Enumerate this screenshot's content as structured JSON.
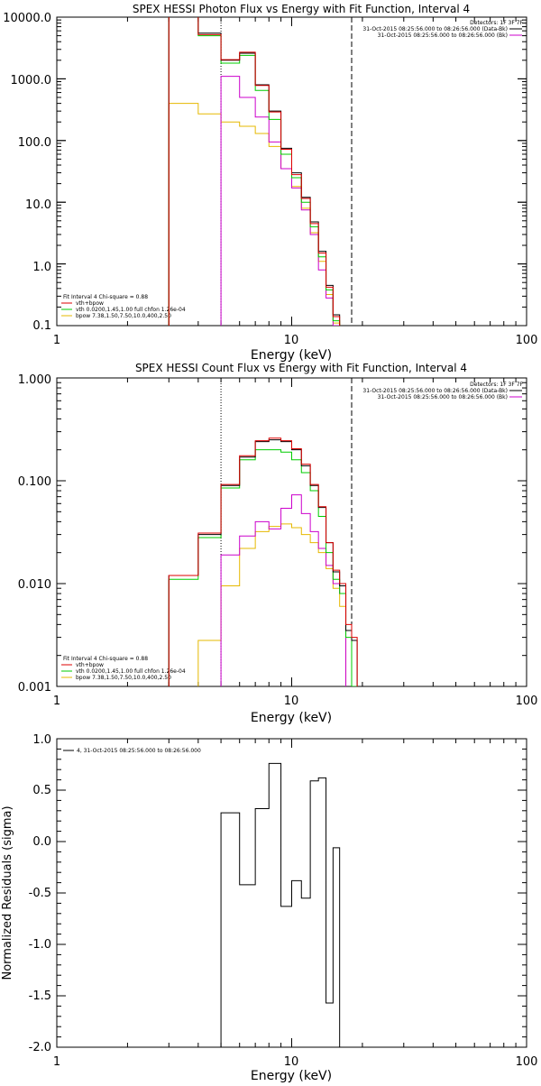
{
  "colors": {
    "data": "#000000",
    "total": "#dd0000",
    "vth": "#00cc00",
    "bpow": "#e6b800",
    "bk": "#cc00cc"
  },
  "chart_data": [
    {
      "type": "line",
      "title": "SPEX HESSI Photon Flux vs Energy with Fit Function, Interval 4",
      "xlabel": "Energy (keV)",
      "ylabel": "",
      "xscale": "log",
      "yscale": "log",
      "xlim": [
        1,
        100
      ],
      "ylim": [
        0.1,
        10000
      ],
      "xtick_labels": [
        "1",
        "10",
        "100"
      ],
      "ytick_labels": [
        "0.1",
        "1.0",
        "10.0",
        "100.0",
        "1000.0",
        "10000.0"
      ],
      "detectors_label": "Detectors: 1F 3F 7F",
      "legend_right": [
        "31-Oct-2015 08:25:56.000 to 08:26:56.000 (Data-Bk)",
        "31-Oct-2015 08:25:56.000 to 08:26:56.000 (Bk)"
      ],
      "legend_left": [
        "Fit Interval 4   Chi-square = 0.88",
        "vth+bpow",
        "vth 0.0200,1.45,1.00  full chfon 1.26e-04",
        "bpow 7.38,1.50,7.50,10.0,400,2.50"
      ],
      "vlines": [
        5,
        18
      ],
      "bin_edges": [
        3,
        4,
        5,
        6,
        7,
        8,
        9,
        10,
        11,
        12,
        13,
        14,
        15,
        16,
        17,
        18
      ],
      "series": [
        {
          "key": "data",
          "values": [
            20000,
            5500,
            2000,
            2600,
            800,
            300,
            75,
            30,
            12,
            4.8,
            1.6,
            0.45,
            0.15,
            null,
            null
          ]
        },
        {
          "key": "total",
          "values": [
            20000,
            5200,
            2050,
            2700,
            780,
            290,
            72,
            28,
            11.5,
            4.5,
            1.5,
            0.42,
            0.14,
            null,
            null
          ]
        },
        {
          "key": "vth",
          "values": [
            20000,
            5000,
            1800,
            2400,
            650,
            220,
            60,
            25,
            10,
            4.0,
            1.3,
            0.38,
            0.12,
            null,
            null
          ]
        },
        {
          "key": "bpow",
          "values": [
            400,
            270,
            200,
            170,
            130,
            80,
            35,
            18,
            8,
            3.2,
            1.1,
            0.32,
            0.11,
            null,
            null
          ]
        },
        {
          "key": "bk",
          "values": [
            null,
            null,
            1100,
            500,
            240,
            95,
            35,
            17,
            7.5,
            3.0,
            0.8,
            0.28,
            0.1,
            null,
            null
          ]
        }
      ]
    },
    {
      "type": "line",
      "title": "SPEX HESSI Count Flux vs Energy with Fit Function, Interval 4",
      "xlabel": "Energy (keV)",
      "ylabel": "",
      "xscale": "log",
      "yscale": "log",
      "xlim": [
        1,
        100
      ],
      "ylim": [
        0.001,
        1.0
      ],
      "xtick_labels": [
        "1",
        "10",
        "100"
      ],
      "ytick_labels": [
        "0.001",
        "0.010",
        "0.100",
        "1.000"
      ],
      "detectors_label": "Detectors: 1F 3F 7F",
      "legend_right": [
        "31-Oct-2015 08:25:56.000 to 08:26:56.000 (Data-Bk)",
        "31-Oct-2015 08:25:56.000 to 08:26:56.000 (Bk)"
      ],
      "legend_left": [
        "Fit Interval 4   Chi-square = 0.88",
        "vth+bpow",
        "vth 0.0200,1.45,1.00  full chfon 1.26e-04",
        "bpow 7.38,1.50,7.50,10.0,400,2.50"
      ],
      "vlines": [
        5,
        18
      ],
      "bin_edges": [
        3,
        4,
        5,
        6,
        7,
        8,
        9,
        10,
        11,
        12,
        13,
        14,
        15,
        16,
        17,
        18,
        19,
        20
      ],
      "series": [
        {
          "key": "data",
          "values": [
            0.012,
            0.03,
            0.09,
            0.17,
            0.24,
            0.25,
            0.24,
            0.2,
            0.14,
            0.09,
            0.055,
            0.025,
            0.013,
            0.0095,
            0.0035,
            0.0028,
            null
          ]
        },
        {
          "key": "total",
          "values": [
            0.012,
            0.031,
            0.092,
            0.175,
            0.245,
            0.26,
            0.245,
            0.205,
            0.145,
            0.092,
            0.056,
            0.025,
            0.0135,
            0.01,
            0.004,
            0.003,
            null
          ]
        },
        {
          "key": "vth",
          "values": [
            0.011,
            0.028,
            0.085,
            0.16,
            0.2,
            0.2,
            0.19,
            0.16,
            0.12,
            0.08,
            0.045,
            0.02,
            0.011,
            0.008,
            0.003,
            0.001,
            null
          ]
        },
        {
          "key": "bpow",
          "values": [
            null,
            0.0028,
            0.0095,
            0.022,
            0.032,
            0.036,
            0.038,
            0.035,
            0.03,
            0.025,
            0.02,
            0.014,
            0.009,
            0.006,
            null,
            null,
            null
          ]
        },
        {
          "key": "bk",
          "values": [
            null,
            null,
            0.019,
            0.029,
            0.04,
            0.034,
            0.054,
            0.073,
            0.048,
            0.032,
            0.022,
            0.015,
            0.01,
            0.008,
            null,
            null,
            null
          ]
        }
      ]
    },
    {
      "type": "line",
      "title": "",
      "xlabel": "Energy (keV)",
      "ylabel": "Normalized Residuals (sigma)",
      "xscale": "log",
      "yscale": "linear",
      "xlim": [
        1,
        100
      ],
      "ylim": [
        -2.0,
        1.0
      ],
      "xtick_labels": [
        "1",
        "10",
        "100"
      ],
      "ytick_labels": [
        "-2.0",
        "-1.5",
        "-1.0",
        "-0.5",
        "0.0",
        "0.5",
        "1.0"
      ],
      "legend": "4, 31-Oct-2015 08:25:56.000 to 08:26:56.000",
      "bin_edges": [
        5,
        6,
        7,
        8,
        9,
        10,
        11,
        12,
        13,
        14,
        15,
        16,
        17,
        18
      ],
      "series": [
        {
          "key": "data",
          "values": [
            0.28,
            -0.42,
            0.32,
            0.76,
            -0.63,
            -0.38,
            -0.55,
            0.59,
            0.62,
            -1.57,
            -0.06,
            null,
            null
          ]
        }
      ]
    }
  ]
}
